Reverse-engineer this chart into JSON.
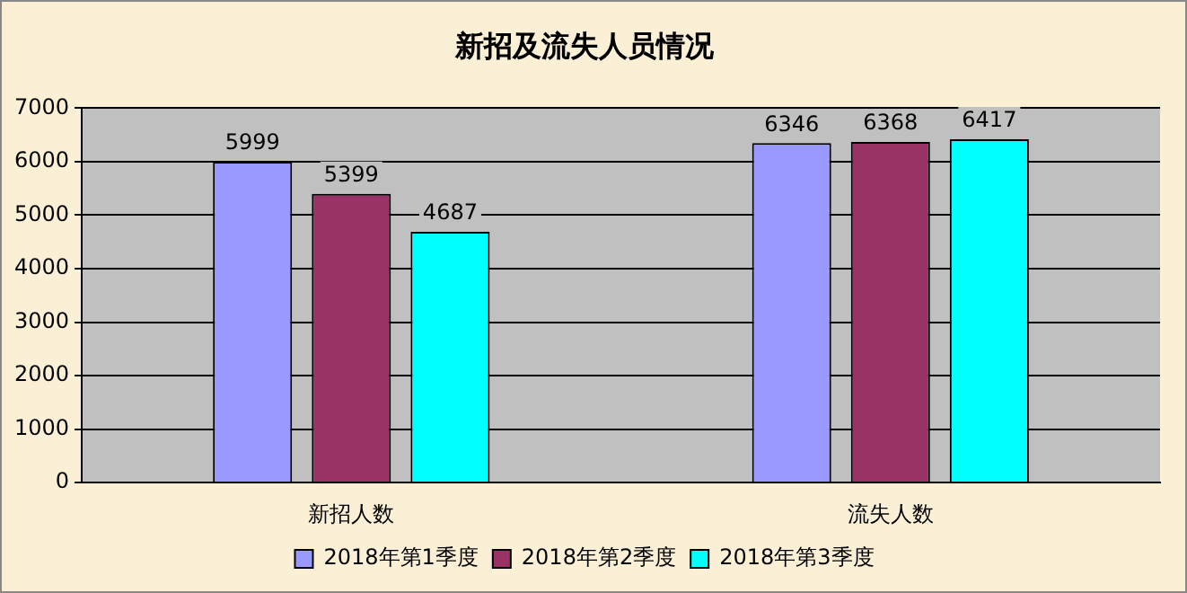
{
  "chart_data": {
    "type": "bar",
    "title": "新招及流失人员情况",
    "categories": [
      "新招人数",
      "流失人数"
    ],
    "series": [
      {
        "name": "2018年第1季度",
        "color": "#9999ff",
        "values": [
          5999,
          6346
        ]
      },
      {
        "name": "2018年第2季度",
        "color": "#993366",
        "values": [
          5399,
          6368
        ]
      },
      {
        "name": "2018年第3季度",
        "color": "#00ffff",
        "values": [
          4687,
          6417
        ]
      }
    ],
    "ylim": [
      0,
      7000
    ],
    "yticks": [
      0,
      1000,
      2000,
      3000,
      4000,
      5000,
      6000,
      7000
    ],
    "grid": "y",
    "legend": "bottom",
    "data_labels": true
  }
}
